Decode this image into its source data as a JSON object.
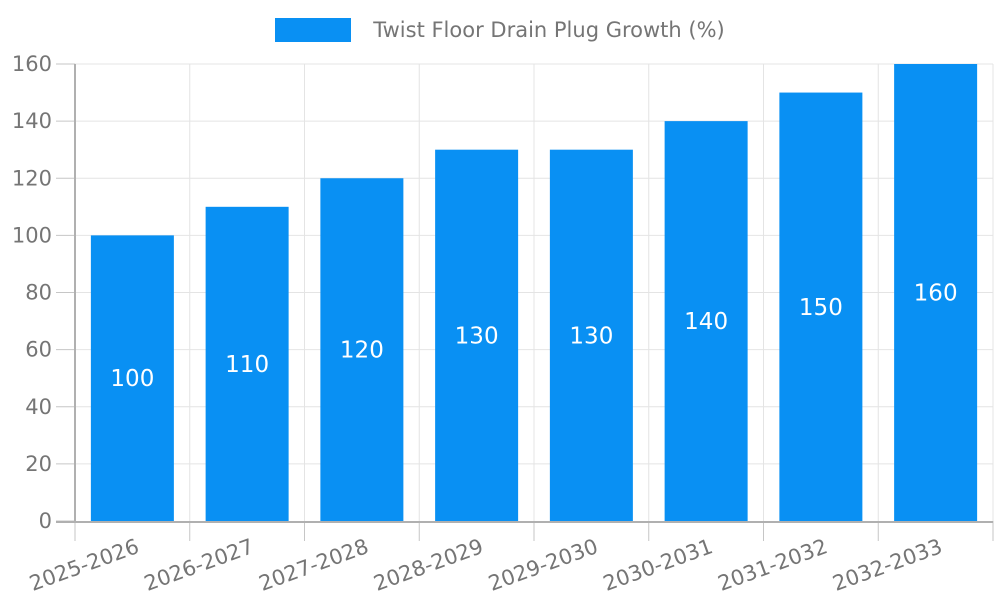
{
  "chart_data": {
    "type": "bar",
    "title": "",
    "legend_label": "Twist Floor Drain Plug Growth (%)",
    "legend_position": "top-center",
    "categories": [
      "2025-2026",
      "2026-2027",
      "2027-2028",
      "2028-2029",
      "2029-2030",
      "2030-2031",
      "2031-2032",
      "2032-2033"
    ],
    "values": [
      100,
      110,
      120,
      130,
      130,
      140,
      150,
      160
    ],
    "bar_value_labels": [
      "100",
      "110",
      "120",
      "130",
      "130",
      "140",
      "150",
      "160"
    ],
    "xlabel": "",
    "ylabel": "",
    "ylim": [
      0,
      160
    ],
    "yticks": [
      0,
      20,
      40,
      60,
      80,
      100,
      120,
      140,
      160
    ],
    "ytick_labels": [
      "0",
      "20",
      "40",
      "60",
      "80",
      "100",
      "120",
      "140",
      "160"
    ],
    "grid": true,
    "xlabel_rotation_deg": -20,
    "colors": {
      "bar": "#0990f3",
      "bar_label": "#ffffff",
      "axis_text": "#757575",
      "grid": "#e4e4e4",
      "tick": "#c6c6c6",
      "axis_line": "#b0b0b0",
      "background": "#ffffff"
    }
  }
}
